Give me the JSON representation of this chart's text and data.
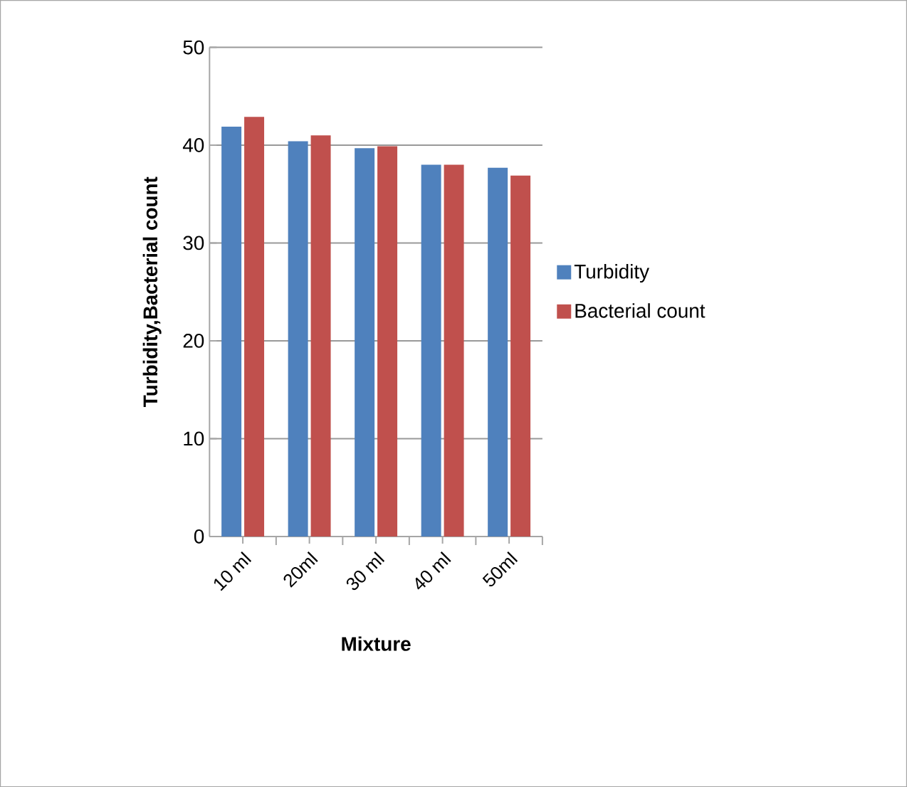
{
  "chart_data": {
    "type": "bar",
    "xlabel": "Mixture",
    "ylabel": "Turbidity,Bacterial count",
    "categories": [
      "10 ml",
      "20ml",
      "30 ml",
      "40 ml",
      "50ml"
    ],
    "series": [
      {
        "name": "Turbidity",
        "color": "#4f81bd",
        "values": [
          41.9,
          40.4,
          39.7,
          38.0,
          37.7
        ]
      },
      {
        "name": "Bacterial count",
        "color": "#c0504d",
        "values": [
          42.9,
          41.0,
          39.9,
          38.0,
          36.9
        ]
      }
    ],
    "ylim": [
      0,
      50
    ],
    "yticks": [
      0,
      10,
      20,
      30,
      40,
      50
    ],
    "grid": "y",
    "legend": "right"
  }
}
